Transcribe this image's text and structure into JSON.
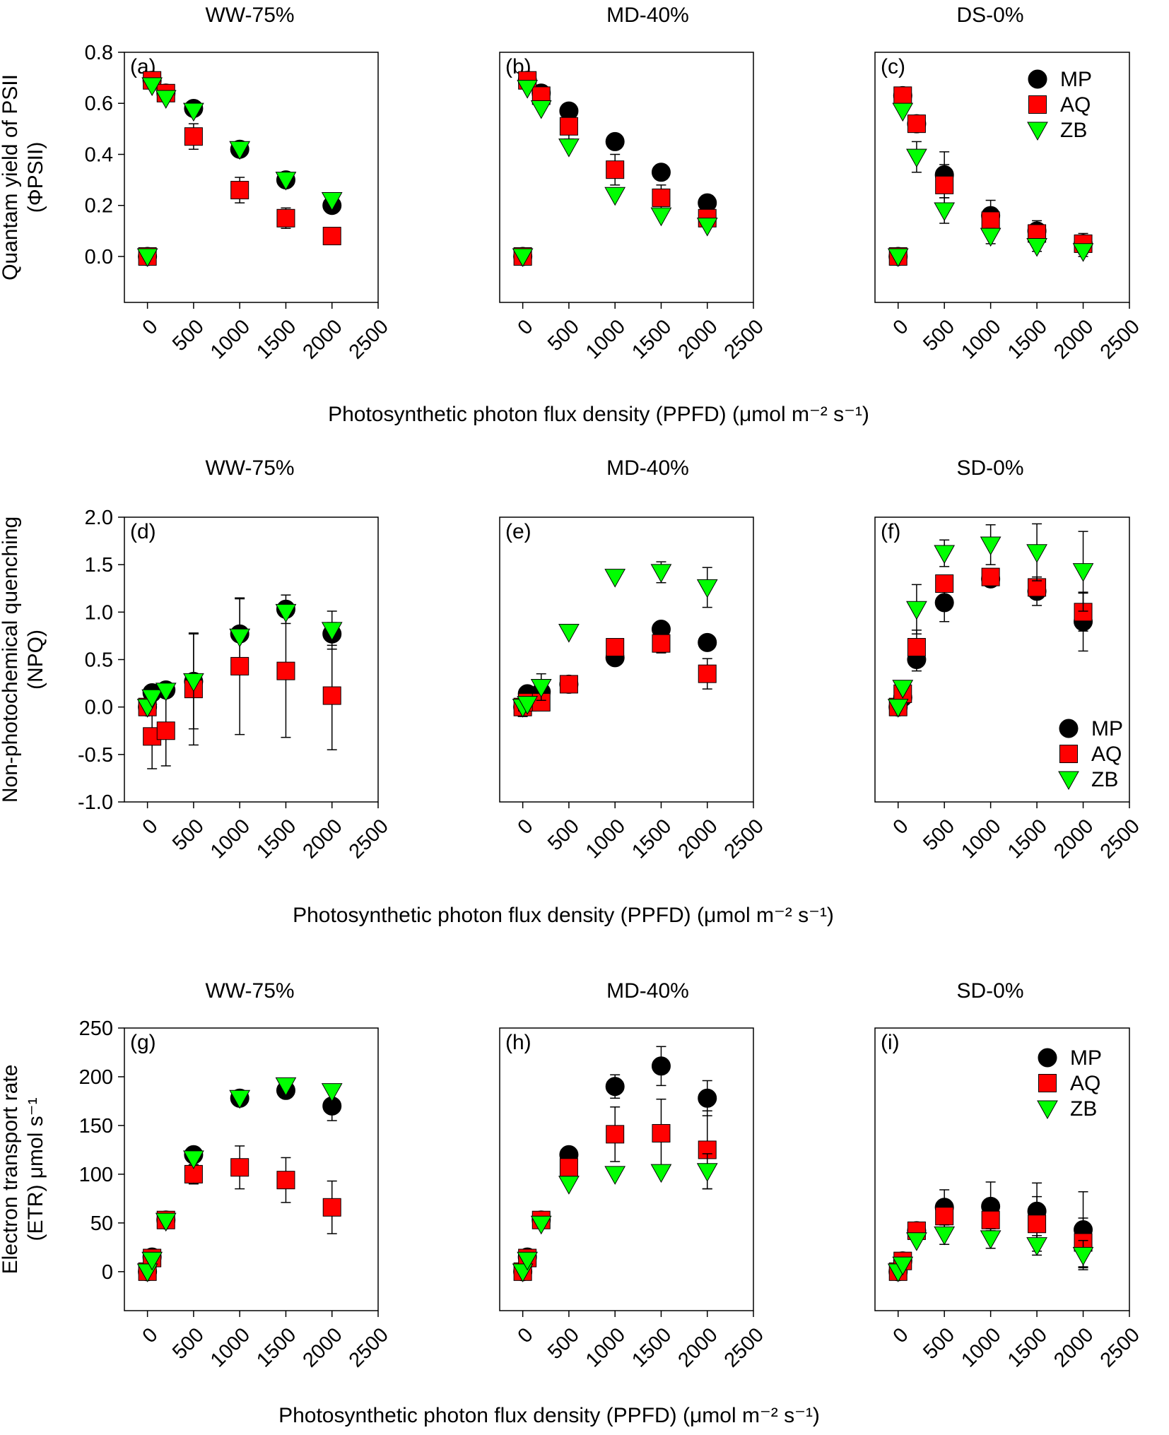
{
  "figure": {
    "x_axis_label": "Photosynthetic photon flux density (PPFD) (μmol m⁻² s⁻¹)",
    "colors": {
      "MP": "#000000",
      "AQ": "#ff0000",
      "ZB": "#00ff00"
    }
  },
  "chart_data": [
    {
      "type": "scatter",
      "panel": "(a)",
      "title": "WW-75%",
      "ylabel": "Quantam yield of PSII (ΦPSII)",
      "xlim": [
        -250,
        2500
      ],
      "ylim": [
        -0.18,
        0.8
      ],
      "xticks": [
        0,
        500,
        1000,
        1500,
        2000,
        2500
      ],
      "yticks": [
        0.0,
        0.2,
        0.4,
        0.6,
        0.8
      ],
      "y_tick_labels": [
        "0.0",
        "0.2",
        "0.4",
        "0.6",
        "0.8"
      ],
      "legend": null,
      "x": [
        0,
        50,
        200,
        500,
        1000,
        1500,
        2000
      ],
      "series": [
        {
          "name": "MP",
          "values": [
            0.0,
            0.69,
            0.64,
            0.58,
            0.42,
            0.3,
            0.2
          ],
          "errors": [
            0,
            0,
            0,
            0,
            0,
            0,
            0
          ]
        },
        {
          "name": "AQ",
          "values": [
            0.0,
            0.69,
            0.64,
            0.47,
            0.26,
            0.15,
            0.08
          ],
          "errors": [
            0,
            0,
            0,
            0.05,
            0.05,
            0.04,
            0
          ]
        },
        {
          "name": "ZB",
          "values": [
            0.0,
            0.67,
            0.62,
            0.57,
            0.42,
            0.3,
            0.22
          ],
          "errors": [
            0,
            0,
            0,
            0,
            0,
            0,
            0
          ]
        }
      ]
    },
    {
      "type": "scatter",
      "panel": "(b)",
      "title": "MD-40%",
      "ylabel": "",
      "xlim": [
        -250,
        2500
      ],
      "ylim": [
        -0.18,
        0.8
      ],
      "xticks": [
        0,
        500,
        1000,
        1500,
        2000,
        2500
      ],
      "yticks": [],
      "y_tick_labels": [],
      "legend": null,
      "x": [
        0,
        50,
        200,
        500,
        1000,
        1500,
        2000
      ],
      "series": [
        {
          "name": "MP",
          "values": [
            0.0,
            0.69,
            0.64,
            0.57,
            0.45,
            0.33,
            0.21
          ],
          "errors": [
            0,
            0,
            0,
            0,
            0,
            0,
            0
          ]
        },
        {
          "name": "AQ",
          "values": [
            0.0,
            0.69,
            0.63,
            0.51,
            0.34,
            0.23,
            0.15
          ],
          "errors": [
            0,
            0,
            0,
            0.05,
            0.06,
            0.05,
            0
          ]
        },
        {
          "name": "ZB",
          "values": [
            0.0,
            0.66,
            0.58,
            0.43,
            0.24,
            0.16,
            0.12
          ],
          "errors": [
            0,
            0,
            0,
            0,
            0,
            0,
            0
          ]
        }
      ]
    },
    {
      "type": "scatter",
      "panel": "(c)",
      "title": "DS-0%",
      "ylabel": "",
      "xlim": [
        -250,
        2500
      ],
      "ylim": [
        -0.18,
        0.8
      ],
      "xticks": [
        0,
        500,
        1000,
        1500,
        2000,
        2500
      ],
      "yticks": [],
      "y_tick_labels": [],
      "legend": "top-right",
      "x": [
        0,
        50,
        200,
        500,
        1000,
        1500,
        2000
      ],
      "series": [
        {
          "name": "MP",
          "values": [
            0.0,
            0.63,
            0.52,
            0.32,
            0.16,
            0.1,
            0.05
          ],
          "errors": [
            0,
            0,
            0.03,
            0.09,
            0.06,
            0.04,
            0.04
          ]
        },
        {
          "name": "AQ",
          "values": [
            0.0,
            0.63,
            0.52,
            0.28,
            0.14,
            0.09,
            0.05
          ],
          "errors": [
            0,
            0,
            0.03,
            0.08,
            0.05,
            0.03,
            0.02
          ]
        },
        {
          "name": "ZB",
          "values": [
            0.0,
            0.57,
            0.39,
            0.18,
            0.08,
            0.04,
            0.02
          ],
          "errors": [
            0,
            0,
            0.06,
            0.05,
            0.03,
            0.02,
            0.02
          ]
        }
      ]
    },
    {
      "type": "scatter",
      "panel": "(d)",
      "title": "WW-75%",
      "ylabel": "Non-photochemical quenching (NPQ)",
      "xlim": [
        -250,
        2500
      ],
      "ylim": [
        -1.0,
        2.0
      ],
      "xticks": [
        0,
        500,
        1000,
        1500,
        2000,
        2500
      ],
      "yticks": [
        -1.0,
        -0.5,
        0.0,
        0.5,
        1.0,
        1.5,
        2.0
      ],
      "y_tick_labels": [
        "-1.0",
        "-0.5",
        "0.0",
        "0.5",
        "1.0",
        "1.5",
        "2.0"
      ],
      "legend": null,
      "x": [
        0,
        50,
        200,
        500,
        1000,
        1500,
        2000
      ],
      "series": [
        {
          "name": "MP",
          "values": [
            0.0,
            0.15,
            0.18,
            0.27,
            0.77,
            1.03,
            0.77
          ],
          "errors": [
            0,
            0,
            0,
            0,
            0.37,
            0.15,
            0.12
          ]
        },
        {
          "name": "AQ",
          "values": [
            0.0,
            -0.31,
            -0.25,
            0.19,
            0.43,
            0.38,
            0.12
          ],
          "errors": [
            0,
            0.34,
            0.37,
            0.59,
            0.72,
            0.7,
            0.57
          ]
        },
        {
          "name": "ZB",
          "values": [
            0.0,
            0.1,
            0.17,
            0.27,
            0.74,
            1.0,
            0.81
          ],
          "errors": [
            0,
            0,
            0,
            0.5,
            0,
            0,
            0.2
          ]
        }
      ]
    },
    {
      "type": "scatter",
      "panel": "(e)",
      "title": "MD-40%",
      "ylabel": "",
      "xlim": [
        -250,
        2500
      ],
      "ylim": [
        -1.0,
        2.0
      ],
      "xticks": [
        0,
        500,
        1000,
        1500,
        2000,
        2500
      ],
      "yticks": [],
      "y_tick_labels": [],
      "legend": null,
      "x": [
        0,
        50,
        200,
        500,
        1000,
        1500,
        2000
      ],
      "series": [
        {
          "name": "MP",
          "values": [
            0.0,
            0.14,
            0.16,
            0.24,
            0.52,
            0.82,
            0.68
          ],
          "errors": [
            0.1,
            0,
            0,
            0,
            0,
            0,
            0
          ]
        },
        {
          "name": "AQ",
          "values": [
            0.0,
            0.05,
            0.05,
            0.24,
            0.63,
            0.67,
            0.35
          ],
          "errors": [
            0,
            0,
            0,
            0.08,
            0,
            0.1,
            0.16
          ]
        },
        {
          "name": "ZB",
          "values": [
            0.0,
            0.03,
            0.21,
            0.79,
            1.37,
            1.42,
            1.26
          ],
          "errors": [
            0,
            0,
            0.14,
            0,
            0,
            0.11,
            0.21
          ]
        }
      ]
    },
    {
      "type": "scatter",
      "panel": "(f)",
      "title": "SD-0%",
      "ylabel": "",
      "xlim": [
        -250,
        2500
      ],
      "ylim": [
        -1.0,
        2.0
      ],
      "xticks": [
        0,
        500,
        1000,
        1500,
        2000,
        2500
      ],
      "yticks": [],
      "y_tick_labels": [],
      "legend": "bottom-right",
      "x": [
        0,
        50,
        200,
        500,
        1000,
        1500,
        2000
      ],
      "series": [
        {
          "name": "MP",
          "values": [
            0.0,
            0.1,
            0.5,
            1.1,
            1.35,
            1.22,
            0.9
          ],
          "errors": [
            0,
            0,
            0.12,
            0.2,
            0,
            0.15,
            0.31
          ]
        },
        {
          "name": "AQ",
          "values": [
            0.0,
            0.14,
            0.63,
            1.3,
            1.37,
            1.26,
            1.0
          ],
          "errors": [
            0,
            0,
            0.18,
            0,
            0,
            0,
            0.2
          ]
        },
        {
          "name": "ZB",
          "values": [
            0.0,
            0.2,
            1.03,
            1.62,
            1.71,
            1.63,
            1.43
          ],
          "errors": [
            0,
            0,
            0.26,
            0.14,
            0.21,
            0.3,
            0.42
          ]
        }
      ]
    },
    {
      "type": "scatter",
      "panel": "(g)",
      "title": "WW-75%",
      "ylabel": "Electron transport rate (ETR) μmol s⁻¹",
      "xlim": [
        -250,
        2500
      ],
      "ylim": [
        -40,
        250
      ],
      "xticks": [
        0,
        500,
        1000,
        1500,
        2000,
        2500
      ],
      "yticks": [
        0,
        50,
        100,
        150,
        200,
        250
      ],
      "y_tick_labels": [
        "0",
        "50",
        "100",
        "150",
        "200",
        "250"
      ],
      "legend": null,
      "x": [
        0,
        50,
        200,
        500,
        1000,
        1500,
        2000
      ],
      "series": [
        {
          "name": "MP",
          "values": [
            0,
            15,
            53,
            120,
            178,
            186,
            170
          ],
          "errors": [
            0,
            0,
            0,
            0,
            0,
            0,
            15
          ]
        },
        {
          "name": "AQ",
          "values": [
            0,
            14,
            53,
            100,
            107,
            94,
            66
          ],
          "errors": [
            0,
            0,
            0,
            10,
            22,
            23,
            27
          ]
        },
        {
          "name": "ZB",
          "values": [
            0,
            12,
            52,
            116,
            178,
            191,
            185
          ],
          "errors": [
            0,
            0,
            0,
            0,
            0,
            0,
            0
          ]
        }
      ]
    },
    {
      "type": "scatter",
      "panel": "(h)",
      "title": "MD-40%",
      "ylabel": "",
      "xlim": [
        -250,
        2500
      ],
      "ylim": [
        -40,
        250
      ],
      "xticks": [
        0,
        500,
        1000,
        1500,
        2000,
        2500
      ],
      "yticks": [],
      "y_tick_labels": [],
      "legend": null,
      "x": [
        0,
        50,
        200,
        500,
        1000,
        1500,
        2000
      ],
      "series": [
        {
          "name": "MP",
          "values": [
            0,
            15,
            53,
            120,
            190,
            211,
            178
          ],
          "errors": [
            0,
            0,
            0,
            0,
            12,
            20,
            18
          ]
        },
        {
          "name": "AQ",
          "values": [
            0,
            14,
            53,
            107,
            141,
            142,
            125
          ],
          "errors": [
            0,
            0,
            0,
            0,
            28,
            35,
            40
          ]
        },
        {
          "name": "ZB",
          "values": [
            0,
            12,
            49,
            90,
            100,
            102,
            103
          ],
          "errors": [
            0,
            0,
            0,
            0,
            0,
            0,
            18
          ]
        }
      ]
    },
    {
      "type": "scatter",
      "panel": "(i)",
      "title": "SD-0%",
      "ylabel": "",
      "xlim": [
        -250,
        2500
      ],
      "ylim": [
        -40,
        250
      ],
      "xticks": [
        0,
        500,
        1000,
        1500,
        2000,
        2500
      ],
      "yticks": [],
      "y_tick_labels": [],
      "legend": "top-right",
      "x": [
        0,
        50,
        200,
        500,
        1000,
        1500,
        2000
      ],
      "series": [
        {
          "name": "MP",
          "values": [
            0,
            11,
            42,
            66,
            67,
            62,
            43
          ],
          "errors": [
            0,
            0,
            0,
            18,
            25,
            29,
            39
          ]
        },
        {
          "name": "AQ",
          "values": [
            0,
            11,
            42,
            57,
            53,
            49,
            30
          ],
          "errors": [
            0,
            0,
            0,
            14,
            17,
            28,
            25
          ]
        },
        {
          "name": "ZB",
          "values": [
            0,
            7,
            32,
            38,
            34,
            27,
            17
          ],
          "errors": [
            0,
            0,
            0,
            10,
            10,
            10,
            15
          ]
        }
      ]
    }
  ]
}
